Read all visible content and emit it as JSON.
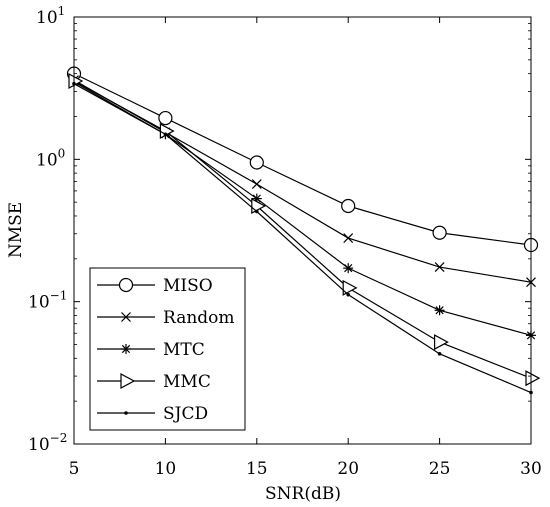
{
  "chart_data": {
    "type": "line",
    "title": "",
    "xlabel": "SNR(dB)",
    "ylabel": "NMSE",
    "yscale": "log",
    "xlim": [
      5,
      30
    ],
    "ylim": [
      0.01,
      10
    ],
    "grid": false,
    "legend_position": "bottom-left",
    "x": [
      5,
      10,
      15,
      20,
      25,
      30
    ],
    "x_ticks": [
      "5",
      "10",
      "15",
      "20",
      "25",
      "30"
    ],
    "y_ticks": [
      {
        "base": "10",
        "exp": "1"
      },
      {
        "base": "10",
        "exp": "0"
      },
      {
        "base": "10",
        "exp": "−1"
      },
      {
        "base": "10",
        "exp": "−2"
      }
    ],
    "series": [
      {
        "name": "MISO",
        "marker": "circle",
        "values": [
          4.0,
          1.95,
          0.95,
          0.47,
          0.305,
          0.25
        ]
      },
      {
        "name": "Random",
        "marker": "x",
        "values": [
          3.6,
          1.55,
          0.67,
          0.28,
          0.175,
          0.137
        ]
      },
      {
        "name": "MTC",
        "marker": "star",
        "values": [
          3.5,
          1.5,
          0.53,
          0.172,
          0.087,
          0.058
        ]
      },
      {
        "name": "MMC",
        "marker": "triangle-right",
        "values": [
          3.55,
          1.58,
          0.47,
          0.125,
          0.052,
          0.029
        ]
      },
      {
        "name": "SJCD",
        "marker": "dot",
        "values": [
          3.4,
          1.5,
          0.43,
          0.112,
          0.043,
          0.023
        ]
      }
    ]
  }
}
